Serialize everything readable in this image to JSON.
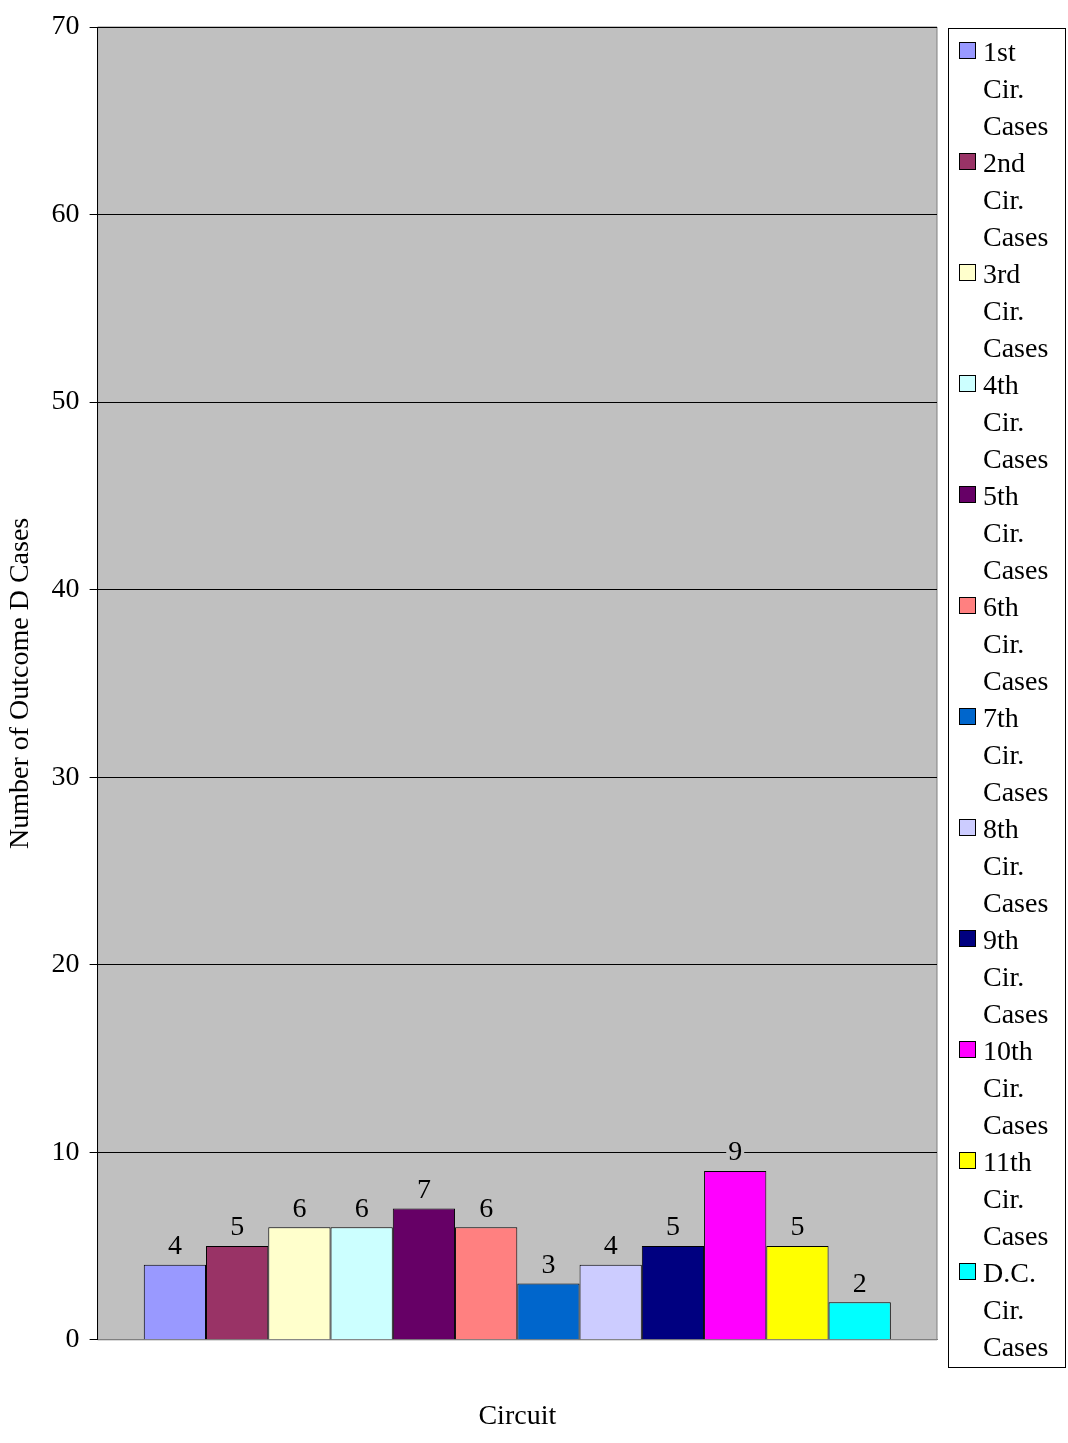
{
  "chart_data": {
    "type": "bar",
    "xlabel": "Circuit",
    "ylabel": "Number of Outcome D Cases",
    "categories": [
      null
    ],
    "series": [
      {
        "name": "1st Cir. Cases",
        "color": "#9999ff",
        "values": [
          4
        ]
      },
      {
        "name": "2nd Cir. Cases",
        "color": "#993366",
        "values": [
          5
        ]
      },
      {
        "name": "3rd Cir. Cases",
        "color": "#ffffcc",
        "values": [
          6
        ]
      },
      {
        "name": "4th Cir. Cases",
        "color": "#ccffff",
        "values": [
          6
        ]
      },
      {
        "name": "5th Cir. Cases",
        "color": "#660066",
        "values": [
          7
        ]
      },
      {
        "name": "6th Cir. Cases",
        "color": "#ff8080",
        "values": [
          6
        ]
      },
      {
        "name": "7th Cir. Cases",
        "color": "#0066cc",
        "values": [
          3
        ]
      },
      {
        "name": "8th Cir. Cases",
        "color": "#ccccff",
        "values": [
          4
        ]
      },
      {
        "name": "9th Cir. Cases",
        "color": "#000080",
        "values": [
          5
        ]
      },
      {
        "name": "10th Cir. Cases",
        "color": "#ff00ff",
        "values": [
          9
        ]
      },
      {
        "name": "11th Cir. Cases",
        "color": "#ffff00",
        "values": [
          5
        ]
      },
      {
        "name": "D.C. Cir. Cases",
        "color": "#00ffff",
        "values": [
          2
        ]
      }
    ],
    "ylim": [
      0,
      70
    ],
    "yticks": [
      0,
      10,
      20,
      30,
      40,
      50,
      60,
      70
    ],
    "grid": "y",
    "legend": "right",
    "data_labels": true
  }
}
